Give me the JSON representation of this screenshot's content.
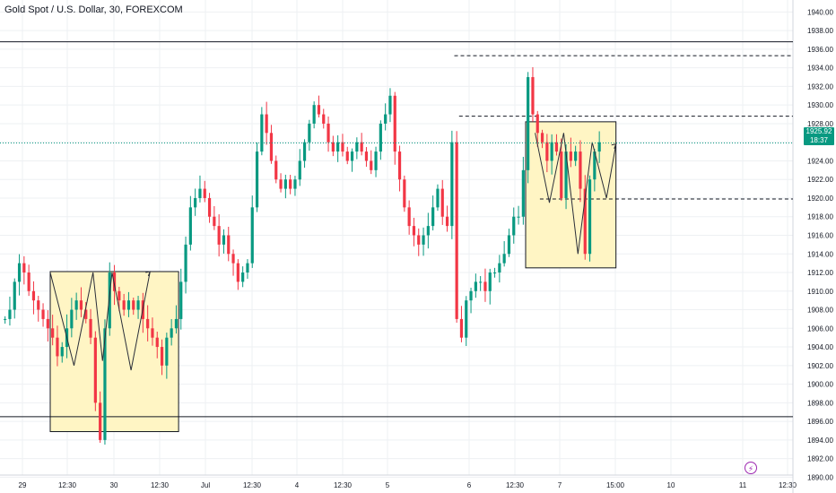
{
  "header": {
    "title": "Gold Spot / U.S. Dollar, 30, FOREXCOM"
  },
  "colors": {
    "up": "#089981",
    "down": "#f23645",
    "box_fill": "#fff5c4",
    "grid": "#eef0f3"
  },
  "last_price": {
    "value": "1925.92",
    "countdown": "18:37"
  },
  "chart_data": {
    "type": "candlestick",
    "symbol": "Gold Spot / U.S. Dollar",
    "interval": "30",
    "exchange": "FOREXCOM",
    "y_range": [
      1889,
      1941
    ],
    "y_ticks": [
      "1940.00",
      "1938.00",
      "1936.00",
      "1934.00",
      "1932.00",
      "1930.00",
      "1928.00",
      "1926.00",
      "1924.00",
      "1922.00",
      "1920.00",
      "1918.00",
      "1916.00",
      "1914.00",
      "1912.00",
      "1910.00",
      "1908.00",
      "1906.00",
      "1904.00",
      "1902.00",
      "1900.00",
      "1898.00",
      "1896.00",
      "1894.00",
      "1892.00",
      "1890.00"
    ],
    "x_ticks": [
      "29",
      "12:30",
      "30",
      "12:30",
      "Jul",
      "12:30",
      "4",
      "12:30",
      "5",
      "6",
      "12:30",
      "7",
      "15:00",
      "10",
      "11",
      "12:30"
    ],
    "price_path": [
      1907,
      1907,
      1908,
      1911,
      1913,
      1912,
      1910,
      1909,
      1908,
      1907,
      1906,
      1905,
      1903,
      1904,
      1906,
      1908,
      1909,
      1908,
      1907,
      1905,
      1898,
      1894,
      1906,
      1912,
      1910,
      1909,
      1908,
      1909,
      1908,
      1909,
      1907,
      1906,
      1905,
      1904,
      1902,
      1905,
      1906,
      1907,
      1911,
      1915,
      1919,
      1920,
      1921,
      1920,
      1918,
      1917,
      1915,
      1916,
      1914,
      1913,
      1911,
      1912,
      1913,
      1919,
      1925,
      1929,
      1927,
      1924,
      1922,
      1921,
      1922,
      1921,
      1922,
      1924,
      1926,
      1928,
      1930,
      1929,
      1928,
      1926,
      1925,
      1926,
      1925,
      1924,
      1925,
      1926,
      1925,
      1924,
      1923,
      1925,
      1928,
      1929,
      1931,
      1925,
      1922,
      1919,
      1917,
      1916,
      1915,
      1916,
      1917,
      1919,
      1921,
      1918,
      1917,
      1926,
      1907,
      1905,
      1909,
      1910,
      1911,
      1911,
      1910,
      1912,
      1912,
      1913,
      1914,
      1916,
      1918,
      1918,
      1923,
      1933,
      1929,
      1927,
      1926,
      1924,
      1926,
      1925,
      1920,
      1925,
      1924,
      1925,
      1921,
      1914,
      1922,
      1925,
      1926
    ],
    "horizontal_lines": [
      {
        "price": 1936.8,
        "style": "solid"
      },
      {
        "price": 1935.3,
        "style": "dashed"
      },
      {
        "price": 1928.8,
        "style": "dashed"
      },
      {
        "price": 1919.9,
        "style": "dashed"
      },
      {
        "price": 1896.5,
        "style": "solid"
      }
    ],
    "boxes": [
      {
        "from_bar": 10,
        "to_bar": 37,
        "price_top": 1912.1,
        "price_bottom": 1894.9
      },
      {
        "from_bar": 110,
        "to_bar": 129,
        "price_top": 1928.2,
        "price_bottom": 1912.5
      }
    ],
    "pattern_paths": [
      {
        "points": [
          [
            10,
            1912
          ],
          [
            15,
            1902
          ],
          [
            19,
            1912
          ],
          [
            21,
            1902.5
          ],
          [
            23,
            1912
          ],
          [
            27,
            1901.5
          ],
          [
            31,
            1912.1
          ]
        ]
      },
      {
        "points": [
          [
            112,
            1927
          ],
          [
            115,
            1919.5
          ],
          [
            118,
            1927
          ],
          [
            121,
            1914
          ],
          [
            124,
            1926
          ],
          [
            127,
            1920
          ],
          [
            129,
            1925.8
          ]
        ]
      }
    ],
    "last_price": 1925.92,
    "grid": true
  }
}
